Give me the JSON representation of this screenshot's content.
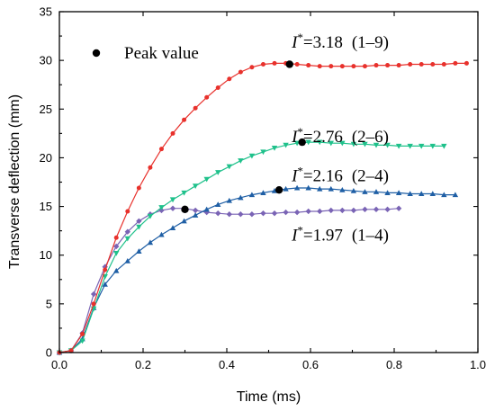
{
  "chart_data": {
    "type": "line",
    "xlabel": "Time (ms)",
    "ylabel": "Transverse deflection (mm)",
    "xlim": [
      0.0,
      1.0
    ],
    "ylim": [
      0,
      35
    ],
    "xticks": [
      "0.0",
      "0.2",
      "0.4",
      "0.6",
      "0.8",
      "1.0"
    ],
    "yticks": [
      "0",
      "5",
      "10",
      "15",
      "20",
      "25",
      "30",
      "35"
    ],
    "grid": false,
    "legend": {
      "label": "Peak value",
      "marker": "dot",
      "color": "#000000",
      "placement": "top-left"
    },
    "series": [
      {
        "name": "I*=3.18 (1–9)",
        "label_symbol": "I",
        "label_sup": "*",
        "label_value": "=3.18",
        "label_case": "(1–9)",
        "color": "#e8312c",
        "marker": "circle",
        "x": [
          0.0,
          0.028,
          0.055,
          0.082,
          0.109,
          0.136,
          0.163,
          0.19,
          0.217,
          0.244,
          0.271,
          0.298,
          0.325,
          0.352,
          0.379,
          0.406,
          0.433,
          0.46,
          0.487,
          0.514,
          0.541,
          0.568,
          0.595,
          0.622,
          0.649,
          0.676,
          0.703,
          0.73,
          0.757,
          0.784,
          0.811,
          0.838,
          0.865,
          0.892,
          0.919,
          0.946,
          0.973
        ],
        "y": [
          0.0,
          0.2,
          1.9,
          5.0,
          8.5,
          11.8,
          14.5,
          16.9,
          19.0,
          20.9,
          22.5,
          23.9,
          25.1,
          26.2,
          27.2,
          28.1,
          28.8,
          29.3,
          29.6,
          29.7,
          29.7,
          29.6,
          29.5,
          29.4,
          29.4,
          29.4,
          29.4,
          29.4,
          29.5,
          29.5,
          29.5,
          29.6,
          29.6,
          29.6,
          29.6,
          29.7,
          29.7
        ],
        "peak": {
          "x": 0.55,
          "y": 29.6
        }
      },
      {
        "name": "I*=2.76 (2–6)",
        "label_symbol": "I",
        "label_sup": "*",
        "label_value": "=2.76",
        "label_case": "(2–6)",
        "color": "#1fc18b",
        "marker": "triangle-down",
        "x": [
          0.0,
          0.028,
          0.055,
          0.082,
          0.109,
          0.136,
          0.163,
          0.19,
          0.217,
          0.244,
          0.271,
          0.298,
          0.325,
          0.352,
          0.379,
          0.406,
          0.433,
          0.46,
          0.487,
          0.514,
          0.541,
          0.568,
          0.595,
          0.622,
          0.649,
          0.676,
          0.703,
          0.73,
          0.757,
          0.784,
          0.811,
          0.838,
          0.865,
          0.892,
          0.919
        ],
        "y": [
          0.0,
          0.2,
          1.2,
          4.5,
          7.8,
          10.2,
          11.7,
          12.9,
          14.0,
          14.9,
          15.7,
          16.4,
          17.1,
          17.8,
          18.5,
          19.1,
          19.7,
          20.2,
          20.6,
          21.0,
          21.3,
          21.5,
          21.6,
          21.6,
          21.5,
          21.5,
          21.4,
          21.4,
          21.3,
          21.3,
          21.2,
          21.2,
          21.2,
          21.2,
          21.2
        ],
        "peak": {
          "x": 0.58,
          "y": 21.6
        }
      },
      {
        "name": "I*=2.16 (2–4)",
        "label_symbol": "I",
        "label_sup": "*",
        "label_value": "=2.16",
        "label_case": "(2–4)",
        "color": "#1f5fa5",
        "marker": "triangle-up",
        "x": [
          0.0,
          0.028,
          0.055,
          0.082,
          0.109,
          0.136,
          0.163,
          0.19,
          0.217,
          0.244,
          0.271,
          0.298,
          0.325,
          0.352,
          0.379,
          0.406,
          0.433,
          0.46,
          0.487,
          0.514,
          0.541,
          0.568,
          0.595,
          0.622,
          0.649,
          0.676,
          0.703,
          0.73,
          0.757,
          0.784,
          0.811,
          0.838,
          0.865,
          0.892,
          0.919,
          0.946
        ],
        "y": [
          0.0,
          0.2,
          1.4,
          4.6,
          7.0,
          8.4,
          9.4,
          10.4,
          11.3,
          12.1,
          12.8,
          13.5,
          14.1,
          14.7,
          15.2,
          15.6,
          15.9,
          16.2,
          16.4,
          16.6,
          16.8,
          16.9,
          16.9,
          16.8,
          16.8,
          16.7,
          16.6,
          16.5,
          16.5,
          16.4,
          16.4,
          16.3,
          16.3,
          16.3,
          16.2,
          16.2
        ],
        "peak": {
          "x": 0.525,
          "y": 16.7
        }
      },
      {
        "name": "I*=1.97 (1–4)",
        "label_symbol": "I",
        "label_sup": "*",
        "label_value": "=1.97",
        "label_case": "(1–4)",
        "color": "#7a64b5",
        "marker": "diamond",
        "x": [
          0.0,
          0.028,
          0.055,
          0.082,
          0.109,
          0.136,
          0.163,
          0.19,
          0.217,
          0.244,
          0.271,
          0.298,
          0.325,
          0.352,
          0.379,
          0.406,
          0.433,
          0.46,
          0.487,
          0.514,
          0.541,
          0.568,
          0.595,
          0.622,
          0.649,
          0.676,
          0.703,
          0.73,
          0.757,
          0.784,
          0.811
        ],
        "y": [
          0.0,
          0.2,
          2.0,
          6.0,
          8.8,
          10.9,
          12.4,
          13.5,
          14.2,
          14.6,
          14.8,
          14.8,
          14.6,
          14.4,
          14.3,
          14.2,
          14.2,
          14.2,
          14.3,
          14.3,
          14.4,
          14.4,
          14.5,
          14.5,
          14.6,
          14.6,
          14.6,
          14.7,
          14.7,
          14.7,
          14.8
        ],
        "peak": {
          "x": 0.3,
          "y": 14.7
        }
      }
    ],
    "annotations": [
      {
        "series": 0,
        "x": 0.555,
        "y": 31.3
      },
      {
        "series": 1,
        "x": 0.555,
        "y": 21.6
      },
      {
        "series": 2,
        "x": 0.555,
        "y": 17.6
      },
      {
        "series": 3,
        "x": 0.555,
        "y": 11.5
      }
    ]
  }
}
